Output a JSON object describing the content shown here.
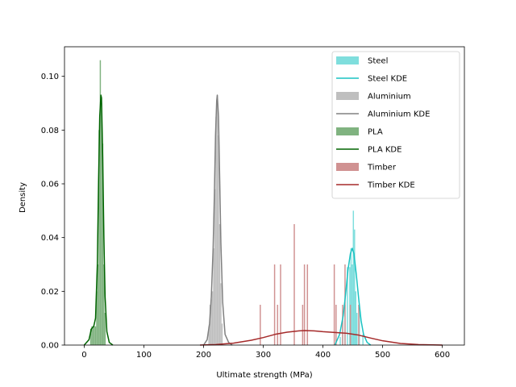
{
  "chart_data": {
    "type": "histogram",
    "xlabel": "Ultimate strength (MPa)",
    "ylabel": "Density",
    "xlim": [
      -33,
      637
    ],
    "ylim": [
      0,
      0.111
    ],
    "xticks": [
      0,
      100,
      200,
      300,
      400,
      500,
      600
    ],
    "yticks": [
      0.0,
      0.02,
      0.04,
      0.06,
      0.08,
      0.1
    ],
    "ytick_labels": [
      "0.00",
      "0.02",
      "0.04",
      "0.06",
      "0.08",
      "0.10"
    ],
    "legend_position": "upper right",
    "grid": false,
    "series": [
      {
        "name": "Steel",
        "kde_name": "Steel KDE",
        "bar_color": "#7fdedd",
        "kde_color": "#1ac2c2",
        "bars": [
          {
            "x0": 428,
            "x1": 430,
            "y": 0.003
          },
          {
            "x0": 432,
            "x1": 434,
            "y": 0.009
          },
          {
            "x0": 436,
            "x1": 438,
            "y": 0.015
          },
          {
            "x0": 440,
            "x1": 442,
            "y": 0.029
          },
          {
            "x0": 444,
            "x1": 446,
            "y": 0.029
          },
          {
            "x0": 446,
            "x1": 448,
            "y": 0.036
          },
          {
            "x0": 448,
            "x1": 450,
            "y": 0.03
          },
          {
            "x0": 450,
            "x1": 452,
            "y": 0.05
          },
          {
            "x0": 452,
            "x1": 454,
            "y": 0.043
          },
          {
            "x0": 454,
            "x1": 456,
            "y": 0.02
          },
          {
            "x0": 456,
            "x1": 458,
            "y": 0.012
          },
          {
            "x0": 460,
            "x1": 462,
            "y": 0.015
          },
          {
            "x0": 466,
            "x1": 468,
            "y": 0.004
          }
        ],
        "kde": {
          "x": [
            420,
            428,
            434,
            438,
            442,
            446,
            449,
            452,
            456,
            460,
            464,
            468,
            474,
            480
          ],
          "y": [
            0.0,
            0.004,
            0.011,
            0.019,
            0.028,
            0.034,
            0.036,
            0.034,
            0.026,
            0.017,
            0.009,
            0.004,
            0.001,
            0.0
          ]
        }
      },
      {
        "name": "Aluminium",
        "kde_name": "Aluminium KDE",
        "bar_color": "#bfbfbf",
        "kde_color": "#808080",
        "bars": [
          {
            "x0": 208,
            "x1": 210,
            "y": 0.007
          },
          {
            "x0": 210,
            "x1": 212,
            "y": 0.015
          },
          {
            "x0": 212,
            "x1": 214,
            "y": 0.017
          },
          {
            "x0": 214,
            "x1": 216,
            "y": 0.02
          },
          {
            "x0": 216,
            "x1": 218,
            "y": 0.036
          },
          {
            "x0": 218,
            "x1": 220,
            "y": 0.058
          },
          {
            "x0": 220,
            "x1": 222,
            "y": 0.085
          },
          {
            "x0": 222,
            "x1": 224,
            "y": 0.093
          },
          {
            "x0": 224,
            "x1": 226,
            "y": 0.078
          },
          {
            "x0": 226,
            "x1": 228,
            "y": 0.045
          },
          {
            "x0": 228,
            "x1": 230,
            "y": 0.023
          },
          {
            "x0": 230,
            "x1": 232,
            "y": 0.008
          }
        ],
        "kde": {
          "x": [
            200,
            206,
            210,
            213,
            216,
            218,
            220,
            222,
            223,
            225,
            227,
            229,
            232,
            236,
            242,
            248
          ],
          "y": [
            0.0,
            0.002,
            0.008,
            0.018,
            0.036,
            0.055,
            0.078,
            0.091,
            0.093,
            0.085,
            0.062,
            0.038,
            0.016,
            0.004,
            0.001,
            0.0
          ]
        }
      },
      {
        "name": "PLA",
        "kde_name": "PLA KDE",
        "bar_color": "#80b380",
        "kde_color": "#006400",
        "bars": [
          {
            "x0": 10,
            "x1": 12,
            "y": 0.006
          },
          {
            "x0": 12,
            "x1": 14,
            "y": 0.007
          },
          {
            "x0": 14,
            "x1": 16,
            "y": 0.007
          },
          {
            "x0": 16,
            "x1": 18,
            "y": 0.007
          },
          {
            "x0": 18,
            "x1": 20,
            "y": 0.007
          },
          {
            "x0": 20,
            "x1": 22,
            "y": 0.02
          },
          {
            "x0": 22,
            "x1": 24,
            "y": 0.03
          },
          {
            "x0": 24,
            "x1": 26,
            "y": 0.08
          },
          {
            "x0": 26,
            "x1": 28,
            "y": 0.106
          },
          {
            "x0": 28,
            "x1": 30,
            "y": 0.09
          },
          {
            "x0": 30,
            "x1": 32,
            "y": 0.075
          },
          {
            "x0": 32,
            "x1": 34,
            "y": 0.03
          },
          {
            "x0": 34,
            "x1": 36,
            "y": 0.012
          }
        ],
        "kde": {
          "x": [
            0,
            8,
            12,
            16,
            19,
            22,
            24,
            26,
            28,
            29,
            31,
            33,
            35,
            38,
            42,
            48
          ],
          "y": [
            0.0,
            0.002,
            0.006,
            0.007,
            0.01,
            0.03,
            0.06,
            0.085,
            0.093,
            0.092,
            0.07,
            0.04,
            0.018,
            0.005,
            0.001,
            0.0
          ]
        }
      },
      {
        "name": "Timber",
        "kde_name": "Timber KDE",
        "bar_color": "#d09292",
        "kde_color": "#a52a2a",
        "bars": [
          {
            "x0": 294,
            "x1": 296,
            "y": 0.015
          },
          {
            "x0": 318,
            "x1": 320,
            "y": 0.03
          },
          {
            "x0": 323,
            "x1": 325,
            "y": 0.015
          },
          {
            "x0": 328,
            "x1": 330,
            "y": 0.03
          },
          {
            "x0": 351,
            "x1": 353,
            "y": 0.045
          },
          {
            "x0": 365,
            "x1": 367,
            "y": 0.015
          },
          {
            "x0": 368,
            "x1": 370,
            "y": 0.03
          },
          {
            "x0": 373,
            "x1": 375,
            "y": 0.03
          },
          {
            "x0": 418,
            "x1": 420,
            "y": 0.03
          },
          {
            "x0": 421,
            "x1": 423,
            "y": 0.015
          },
          {
            "x0": 432,
            "x1": 434,
            "y": 0.015
          },
          {
            "x0": 436,
            "x1": 438,
            "y": 0.03
          },
          {
            "x0": 445,
            "x1": 447,
            "y": 0.015
          },
          {
            "x0": 459,
            "x1": 461,
            "y": 0.015
          }
        ],
        "kde": {
          "x": [
            194,
            220,
            250,
            280,
            300,
            320,
            340,
            360,
            370,
            385,
            400,
            420,
            440,
            460,
            480,
            500,
            530,
            560,
            600
          ],
          "y": [
            0.0,
            0.0002,
            0.0007,
            0.0018,
            0.0028,
            0.004,
            0.0048,
            0.0053,
            0.0054,
            0.0053,
            0.005,
            0.0047,
            0.0044,
            0.0037,
            0.0026,
            0.0016,
            0.0006,
            0.0002,
            0.0
          ]
        }
      }
    ]
  }
}
